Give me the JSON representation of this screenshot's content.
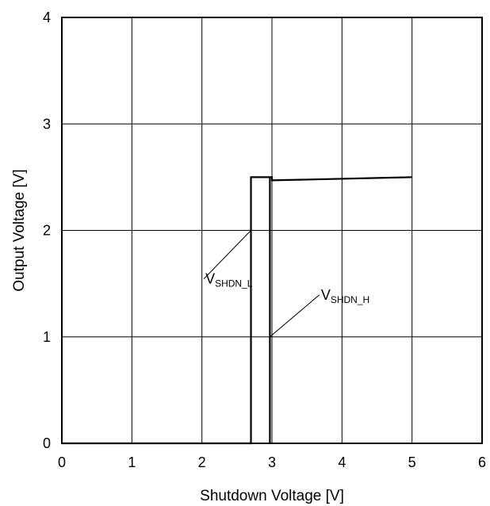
{
  "chart_data": {
    "type": "line",
    "title": "",
    "xlabel": "Shutdown Voltage [V]",
    "ylabel": "Output Voltage [V]",
    "xlim": [
      0,
      6
    ],
    "ylim": [
      0,
      4
    ],
    "xticks": [
      0,
      1,
      2,
      3,
      4,
      5,
      6
    ],
    "yticks": [
      0,
      1,
      2,
      3,
      4
    ],
    "xtick_labels": [
      "0",
      "1",
      "2",
      "3",
      "4",
      "5",
      "6"
    ],
    "ytick_labels": [
      "0",
      "1",
      "2",
      "3",
      "4"
    ],
    "grid": true,
    "legend": "none",
    "series": [
      {
        "x": [
          0,
          2.7,
          2.7,
          3.0,
          3.0,
          5.0
        ],
        "y": [
          0,
          0,
          2.5,
          2.5,
          2.47,
          2.5
        ]
      },
      {
        "x": [
          2.97,
          2.97
        ],
        "y": [
          0,
          2.5
        ]
      }
    ],
    "annotations": [
      {
        "main": "V",
        "sub": "SHDN_L",
        "point": [
          2.7,
          2.0
        ],
        "text_at": [
          2.05,
          1.5
        ]
      },
      {
        "main": "V",
        "sub": "SHDN_H",
        "point": [
          2.97,
          1.0
        ],
        "text_at": [
          3.7,
          1.35
        ]
      }
    ]
  }
}
